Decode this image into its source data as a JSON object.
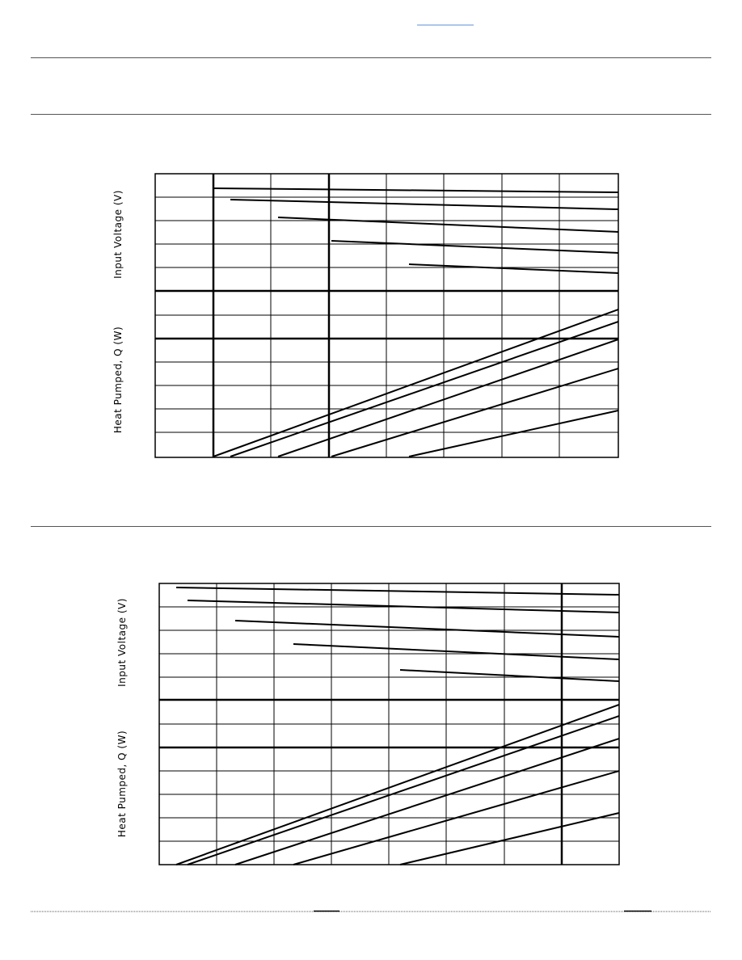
{
  "charts": [
    {
      "upper_axis_label": "Input Voltage (V)",
      "lower_axis_label": "Heat Pumped, Q (W)"
    },
    {
      "upper_axis_label": "Input Voltage (V)",
      "lower_axis_label": "Heat Pumped, Q (W)"
    }
  ]
}
